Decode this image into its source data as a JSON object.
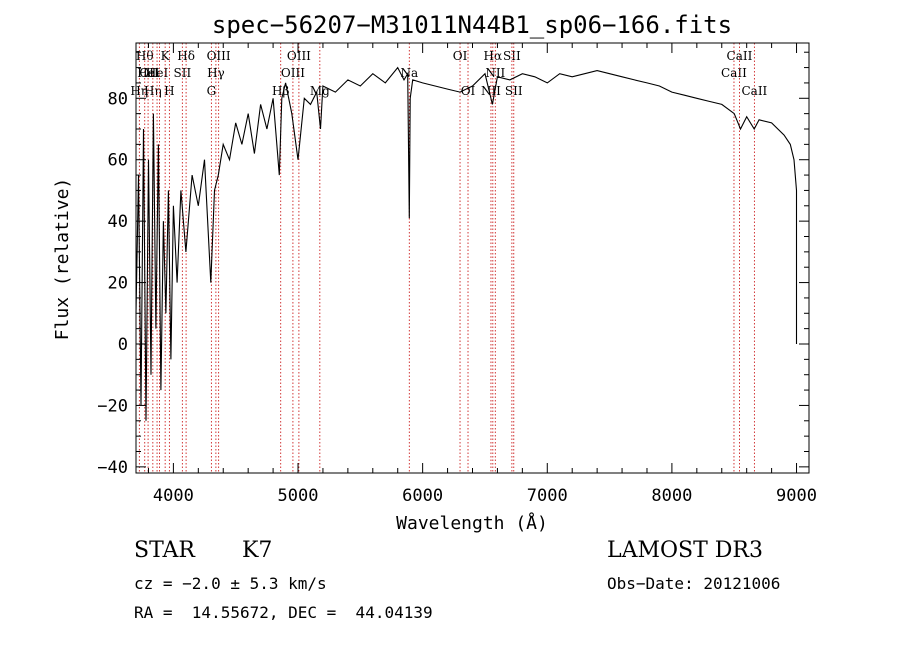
{
  "chart_data": {
    "type": "line",
    "title": "spec−56207−M31011N44B1_sp06−166.fits",
    "xlabel": "Wavelength (Å)",
    "ylabel": "Flux (relative)",
    "xlim": [
      3700,
      9100
    ],
    "ylim": [
      -42,
      98
    ],
    "x_ticks": [
      4000,
      5000,
      6000,
      7000,
      8000,
      9000
    ],
    "y_ticks": [
      -40,
      -20,
      0,
      20,
      40,
      60,
      80
    ],
    "x_tick_labels": [
      "4000",
      "5000",
      "6000",
      "7000",
      "8000",
      "9000"
    ],
    "y_tick_labels": [
      "−40",
      "−20",
      "0",
      "20",
      "40",
      "60",
      "80"
    ],
    "series": [
      {
        "x": [
          3700,
          3720,
          3740,
          3760,
          3780,
          3800,
          3820,
          3840,
          3860,
          3880,
          3900,
          3920,
          3940,
          3960,
          3980,
          4000,
          4030,
          4060,
          4100,
          4150,
          4200,
          4250,
          4300,
          4330,
          4360,
          4400,
          4450,
          4500,
          4550,
          4600,
          4650,
          4700,
          4750,
          4800,
          4850,
          4870,
          4900,
          4950,
          5000,
          5050,
          5100,
          5150,
          5180,
          5200,
          5300,
          5400,
          5500,
          5600,
          5700,
          5800,
          5850,
          5880,
          5893,
          5900,
          5920,
          6000,
          6100,
          6200,
          6300,
          6400,
          6500,
          6560,
          6600,
          6700,
          6800,
          6900,
          7000,
          7100,
          7200,
          7300,
          7400,
          7500,
          7600,
          7700,
          7800,
          7900,
          8000,
          8100,
          8200,
          8300,
          8400,
          8500,
          8550,
          8600,
          8660,
          8700,
          8800,
          8900,
          8950,
          8980,
          9000,
          9000,
          9000
        ],
        "y": [
          10,
          55,
          -20,
          70,
          -25,
          60,
          -10,
          75,
          5,
          65,
          -15,
          40,
          10,
          50,
          -5,
          45,
          20,
          50,
          30,
          55,
          45,
          60,
          20,
          50,
          55,
          65,
          60,
          72,
          65,
          75,
          62,
          78,
          70,
          80,
          55,
          80,
          85,
          75,
          60,
          80,
          78,
          82,
          70,
          84,
          82,
          86,
          84,
          88,
          85,
          90,
          86,
          88,
          41,
          80,
          86,
          85,
          84,
          83,
          82,
          84,
          88,
          78,
          87,
          86,
          88,
          87,
          85,
          88,
          87,
          88,
          89,
          88,
          87,
          86,
          85,
          84,
          82,
          81,
          80,
          79,
          78,
          75,
          70,
          74,
          70,
          73,
          72,
          68,
          65,
          60,
          50,
          10,
          0
        ]
      }
    ],
    "lines": [
      {
        "x": 3727,
        "label": "OII",
        "row": 1,
        "side": "right"
      },
      {
        "x": 3770,
        "label": "Hθ",
        "row": 0,
        "side": "center"
      },
      {
        "x": 3797,
        "label": "Hη",
        "row": 2,
        "side": "left"
      },
      {
        "x": 3835,
        "label": "Hη",
        "row": 2,
        "side": "center"
      },
      {
        "x": 3869,
        "label": "HeI",
        "row": 1,
        "side": "center"
      },
      {
        "x": 3889,
        "label": "HeI",
        "row": 1,
        "side": "left"
      },
      {
        "x": 3934,
        "label": "K",
        "row": 0,
        "side": "center"
      },
      {
        "x": 3968,
        "label": "H",
        "row": 2,
        "side": "center"
      },
      {
        "x": 4072,
        "label": "SII",
        "row": 1,
        "side": "center"
      },
      {
        "x": 4102,
        "label": "Hδ",
        "row": 0,
        "side": "center"
      },
      {
        "x": 4305,
        "label": "G",
        "row": 2,
        "side": "center"
      },
      {
        "x": 4341,
        "label": "Hγ",
        "row": 1,
        "side": "center"
      },
      {
        "x": 4363,
        "label": "OIII",
        "row": 0,
        "side": "center"
      },
      {
        "x": 4861,
        "label": "Hβ",
        "row": 2,
        "side": "center"
      },
      {
        "x": 4959,
        "label": "OIII",
        "row": 1,
        "side": "center"
      },
      {
        "x": 5007,
        "label": "OIII",
        "row": 0,
        "side": "center"
      },
      {
        "x": 5175,
        "label": "Mg",
        "row": 2,
        "side": "center"
      },
      {
        "x": 5893,
        "label": "Na",
        "row": 1,
        "side": "center"
      },
      {
        "x": 6300,
        "label": "OI",
        "row": 0,
        "side": "center"
      },
      {
        "x": 6364,
        "label": "OI",
        "row": 2,
        "side": "center"
      },
      {
        "x": 6548,
        "label": "NII",
        "row": 2,
        "side": "center"
      },
      {
        "x": 6563,
        "label": "Hα",
        "row": 0,
        "side": "center"
      },
      {
        "x": 6583,
        "label": "NII",
        "row": 1,
        "side": "center"
      },
      {
        "x": 6716,
        "label": "SII",
        "row": 0,
        "side": "center"
      },
      {
        "x": 6731,
        "label": "SII",
        "row": 2,
        "side": "center"
      },
      {
        "x": 8498,
        "label": "CaII",
        "row": 1,
        "side": "center"
      },
      {
        "x": 8542,
        "label": "CaII",
        "row": 0,
        "side": "center"
      },
      {
        "x": 8662,
        "label": "CaII",
        "row": 2,
        "side": "center"
      }
    ]
  },
  "info": {
    "object_class": "STAR",
    "subclass": "K7",
    "survey": "LAMOST DR3",
    "cz_line": "cz = −2.0 ± 5.3 km/s",
    "obs_date_line": "Obs−Date: 20121006",
    "coords_line": "RA =  14.55672, DEC =  44.04139"
  }
}
